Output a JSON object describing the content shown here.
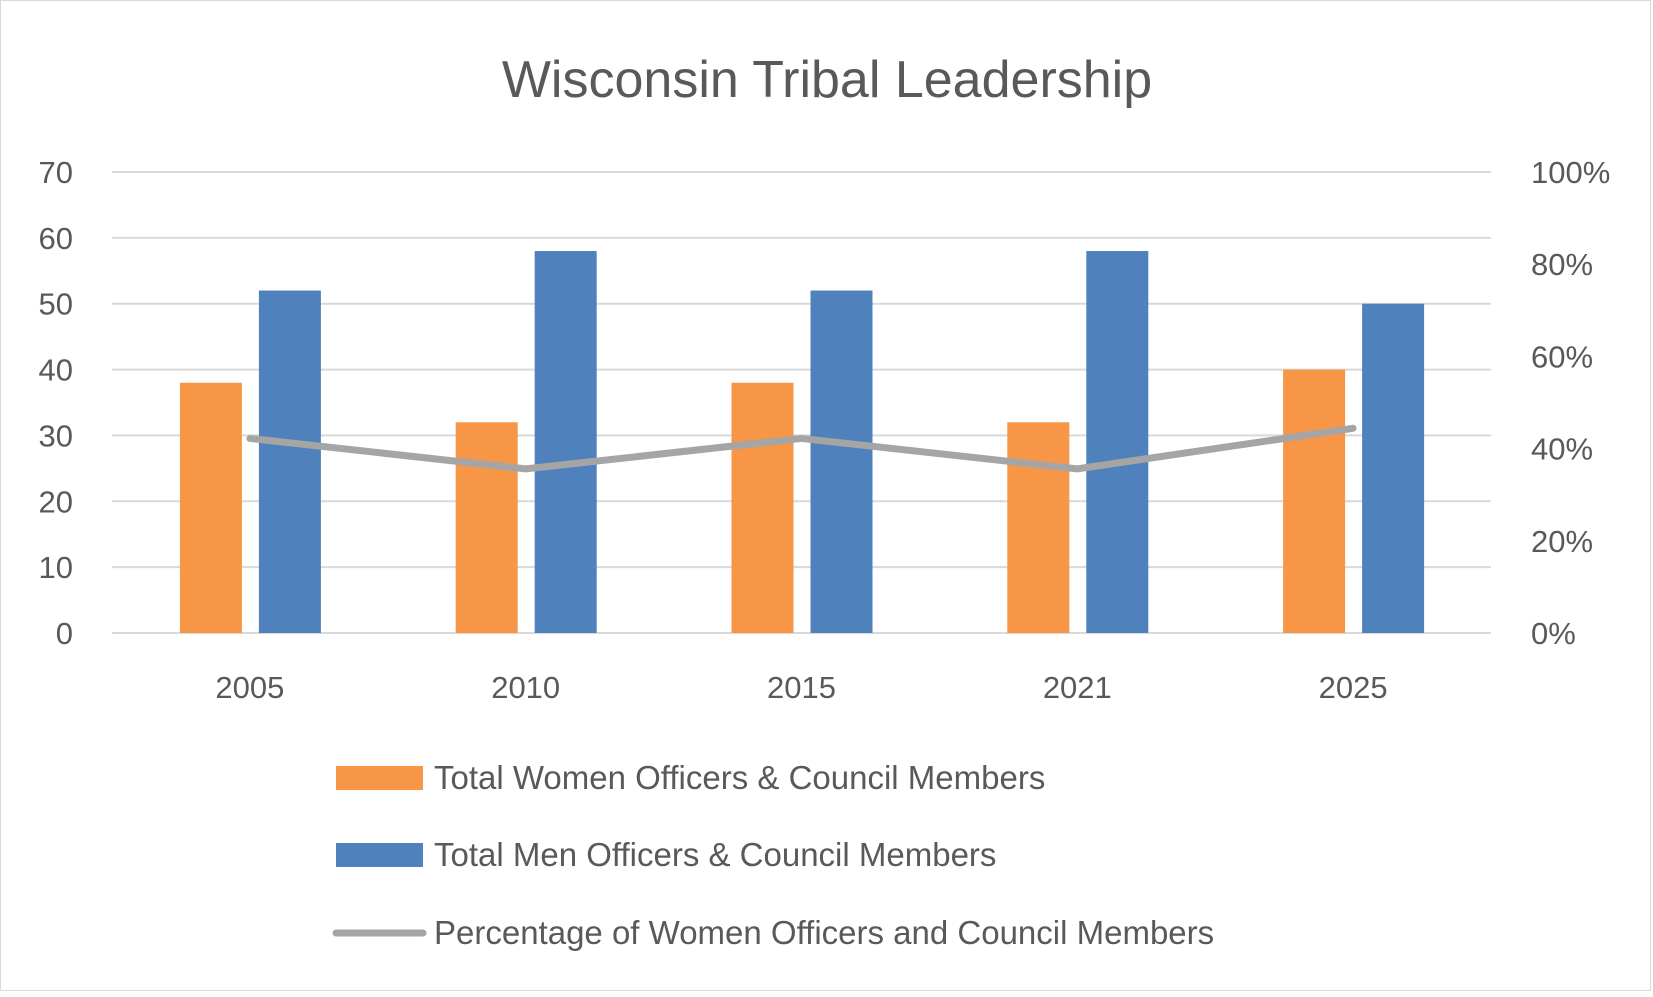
{
  "chart_data": {
    "type": "bar",
    "title": "Wisconsin Tribal Leadership",
    "categories": [
      "2005",
      "2010",
      "2015",
      "2021",
      "2025"
    ],
    "series": [
      {
        "name": "Total Women Officers & Council Members",
        "type": "bar",
        "axis": "left",
        "color": "#F79646",
        "values": [
          38,
          32,
          38,
          32,
          40
        ]
      },
      {
        "name": "Total Men Officers & Council Members",
        "type": "bar",
        "axis": "left",
        "color": "#4F81BD",
        "values": [
          52,
          58,
          52,
          58,
          50
        ]
      },
      {
        "name": "Percentage of  Women Officers and Council Members",
        "type": "line",
        "axis": "right",
        "color": "#A5A5A5",
        "values": [
          0.422,
          0.356,
          0.422,
          0.356,
          0.444
        ]
      }
    ],
    "y_left": {
      "range": [
        0,
        70
      ],
      "ticks": [
        "0",
        "10",
        "20",
        "30",
        "40",
        "50",
        "60",
        "70"
      ]
    },
    "y_right": {
      "range": [
        0,
        1
      ],
      "ticks": [
        "0%",
        "20%",
        "40%",
        "60%",
        "80%",
        "100%"
      ]
    },
    "grid": true,
    "legend_position": "bottom"
  }
}
